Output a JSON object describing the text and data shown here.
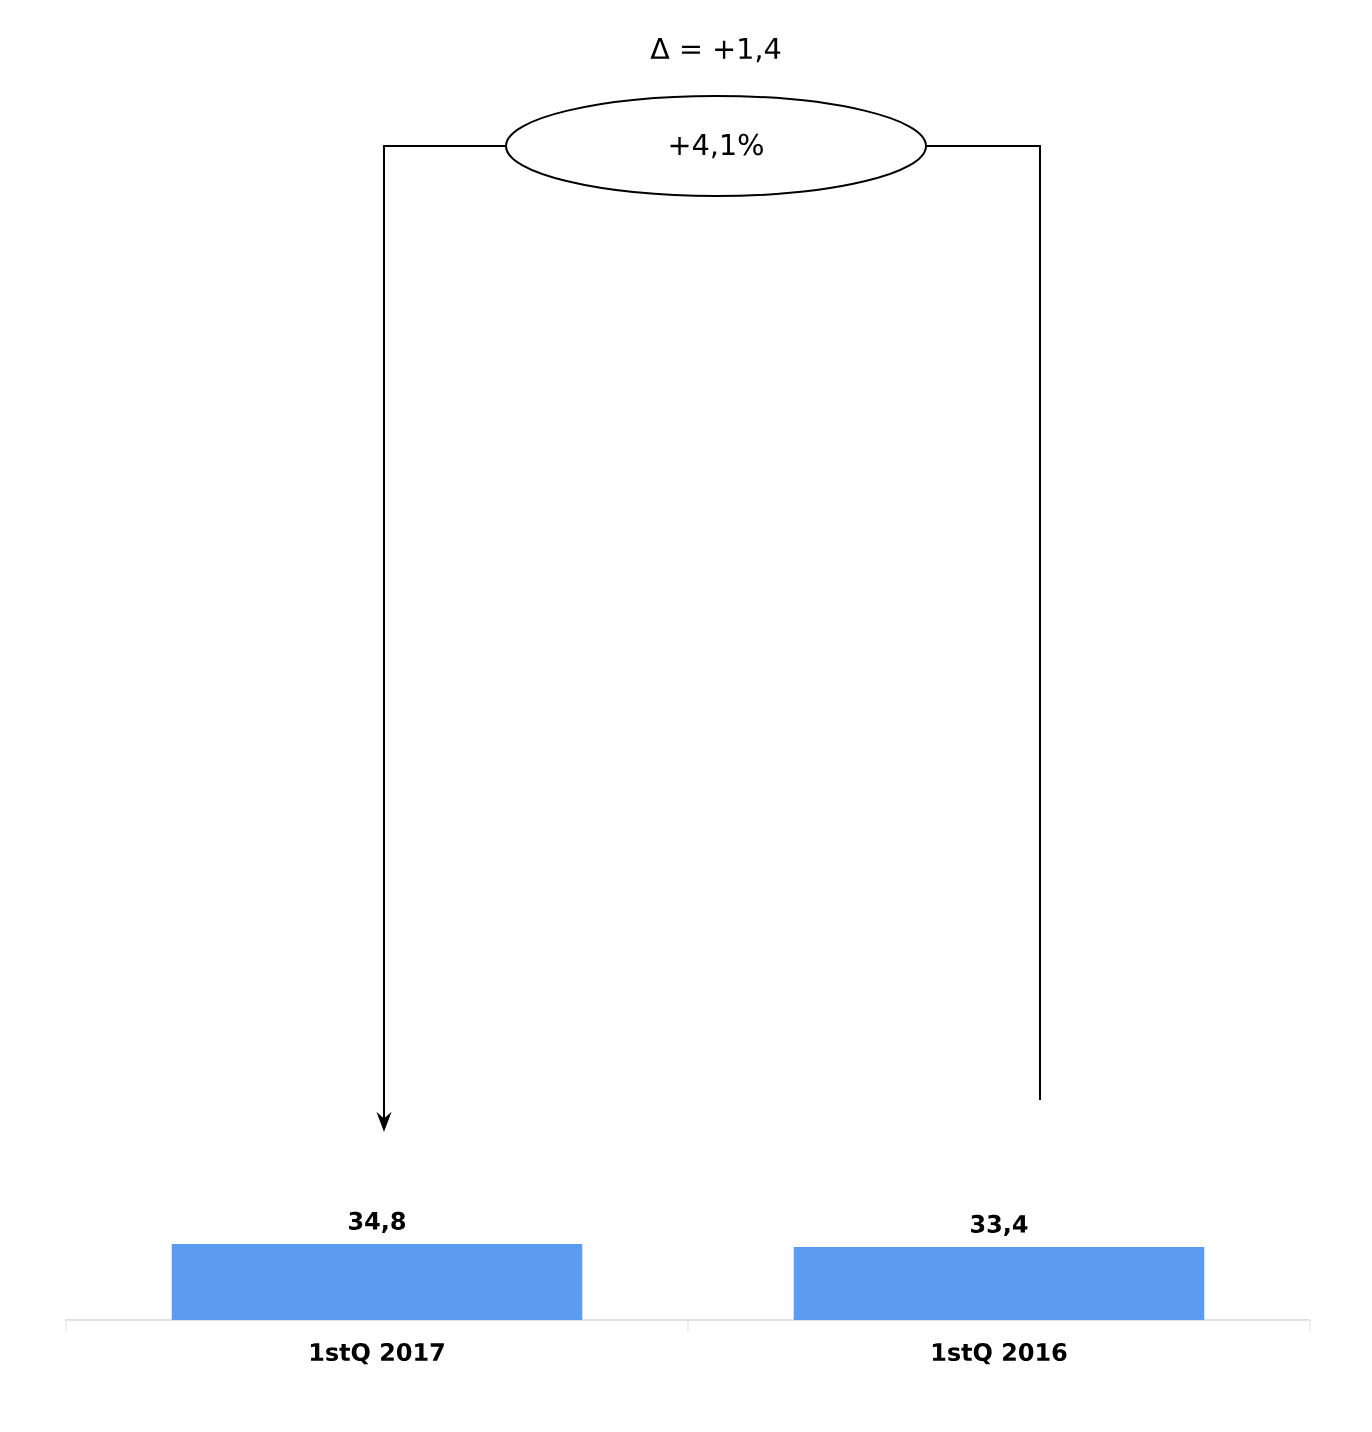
{
  "chart_data": {
    "type": "bar",
    "categories": [
      "1stQ 2017",
      "1stQ 2016"
    ],
    "values": [
      34.8,
      33.4
    ],
    "value_labels": [
      "34,8",
      "33,4"
    ],
    "color": "#5b9bf0",
    "annotations": [
      "Δ = +1,4",
      "+4,1%"
    ]
  }
}
